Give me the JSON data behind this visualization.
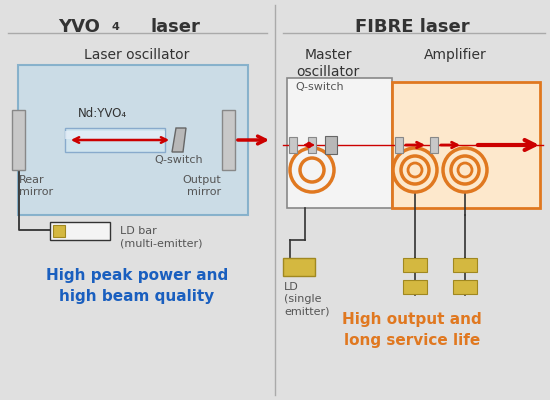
{
  "bg_color": "#e0e0e0",
  "left_title_1": "YVO",
  "left_title_sub": "4",
  "left_title_2": " laser",
  "right_title": "FIBRE laser",
  "left_subtitle": "Laser oscillator",
  "right_subtitle_1": "Master\noscillator",
  "right_subtitle_2": "Amplifier",
  "left_caption": "High peak power and\nhigh beam quality",
  "right_caption": "High output and\nlong service life",
  "left_caption_color": "#1a5fbf",
  "right_caption_color": "#e07820",
  "osc_box_fc": "#c8dce8",
  "osc_box_ec": "#7aaac8",
  "amp_box_fc": "#fde8cc",
  "amp_box_ec": "#e07820",
  "mo_box_fc": "#f4f4f4",
  "mo_box_ec": "#888888",
  "mirror_fc": "#c8c8c8",
  "mirror_ec": "#888888",
  "crystal_fc": "#d0e4ee",
  "crystal_ec": "#88aacc",
  "qsw_fc": "#b8b8b8",
  "qsw_ec": "#666666",
  "arrow_color": "#cc0000",
  "ld_fc": "#d4b840",
  "ld_ec": "#a08820",
  "fiber_color": "#e07820",
  "wire_color": "#333333",
  "divider_color": "#aaaaaa",
  "text_dark": "#333333",
  "text_mid": "#555555",
  "title_fs": 13,
  "subtitle_fs": 10,
  "label_fs": 8,
  "caption_fs": 11
}
